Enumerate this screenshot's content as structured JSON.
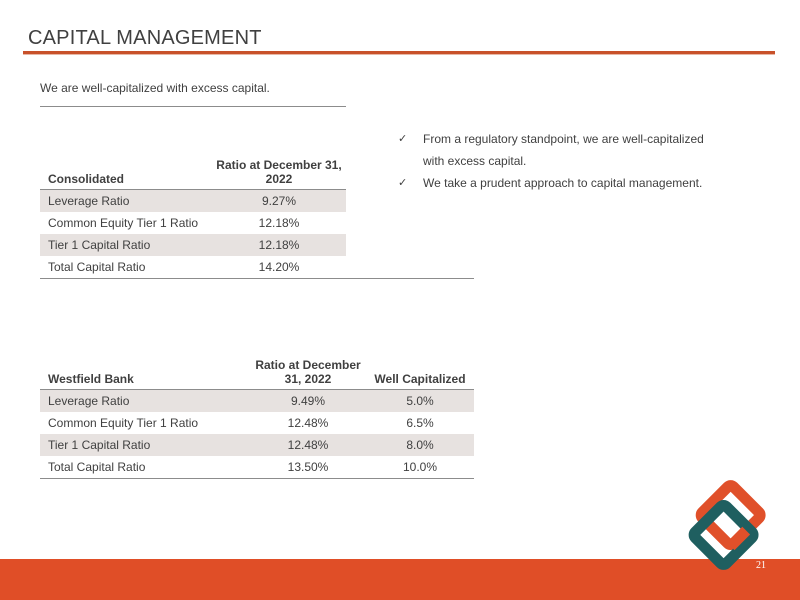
{
  "page": {
    "title": "CAPITAL  MANAGEMENT",
    "subtitle": "We are well-capitalized with excess capital.",
    "page_number": "21"
  },
  "consolidated": {
    "header_label": "Consolidated",
    "header_ratio": "Ratio at December 31, 2022",
    "rows": [
      {
        "label": "Leverage Ratio",
        "ratio": "9.27%"
      },
      {
        "label": "Common Equity Tier 1 Ratio",
        "ratio": "12.18%"
      },
      {
        "label": "Tier 1 Capital Ratio",
        "ratio": "12.18%"
      },
      {
        "label": "Total Capital Ratio",
        "ratio": "14.20%"
      }
    ]
  },
  "bank": {
    "header_label": "Westfield Bank",
    "header_ratio": "Ratio at December 31, 2022",
    "header_well": "Well Capitalized",
    "rows": [
      {
        "label": "Leverage Ratio",
        "ratio": "9.49%",
        "well": "5.0%"
      },
      {
        "label": "Common Equity Tier 1 Ratio",
        "ratio": "12.48%",
        "well": "6.5%"
      },
      {
        "label": "Tier 1 Capital Ratio",
        "ratio": "12.48%",
        "well": "8.0%"
      },
      {
        "label": "Total Capital Ratio",
        "ratio": "13.50%",
        "well": "10.0%"
      }
    ]
  },
  "bullets": [
    "From a regulatory standpoint, we are well-capitalized with excess capital.",
    "We take a prudent approach to capital management."
  ],
  "icons": {
    "bullet": "checkmark-icon",
    "logo": "interlocking-diamonds-logo"
  },
  "colors": {
    "accent": "#e04e27",
    "title_rule": "#c8512a",
    "logo_orange": "#e0502a",
    "logo_teal": "#1f5f60",
    "row_shade": "#e7e2e0"
  }
}
